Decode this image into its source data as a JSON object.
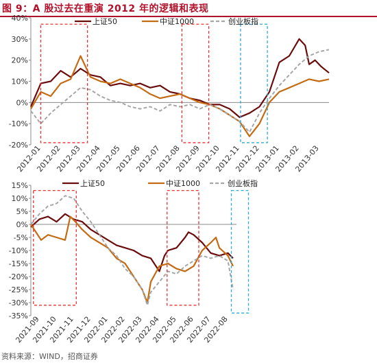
{
  "title": "图 9：A 股过去在重演 2012 年的逻辑和表现",
  "source": "资料来源：WIND，招商证券",
  "colors": {
    "sz50": "#6b0c0c",
    "zz1000": "#c46a12",
    "cyb": "#a6a6a6",
    "red_box": "#e83030",
    "blue_box": "#2aa8d8"
  },
  "chart_data": [
    {
      "type": "line",
      "title": "",
      "ylim": [
        -20,
        40
      ],
      "yticks": [
        "40%",
        "30%",
        "20%",
        "10%",
        "0%",
        "-10%",
        "-20%"
      ],
      "xticks": [
        "2012-01",
        "2012-02",
        "2012-03",
        "2012-04",
        "2012-05",
        "2012-06",
        "2012-07",
        "2012-08",
        "2012-09",
        "2012-10",
        "2012-11",
        "2012-12",
        "2013-01",
        "2013-02",
        "2013-03"
      ],
      "legend_position": "top",
      "series": [
        {
          "name": "上证50",
          "color": "#6b0c0c",
          "dashed": false,
          "points": [
            [
              0,
              -2
            ],
            [
              0.5,
              9
            ],
            [
              1,
              10
            ],
            [
              1.5,
              15
            ],
            [
              2,
              12
            ],
            [
              2.5,
              16
            ],
            [
              3,
              13
            ],
            [
              3.5,
              12
            ],
            [
              4,
              8
            ],
            [
              4.5,
              9
            ],
            [
              5,
              8
            ],
            [
              5.5,
              9
            ],
            [
              6,
              7
            ],
            [
              6.5,
              8
            ],
            [
              7,
              5
            ],
            [
              7.5,
              4
            ],
            [
              8,
              2
            ],
            [
              8.5,
              1
            ],
            [
              9,
              -1
            ],
            [
              9.5,
              -1
            ],
            [
              10,
              -3
            ],
            [
              10.5,
              -7
            ],
            [
              11,
              -5
            ],
            [
              11.5,
              -2
            ],
            [
              12,
              5
            ],
            [
              12.5,
              19
            ],
            [
              13,
              22
            ],
            [
              13.5,
              30
            ],
            [
              13.8,
              27
            ],
            [
              14,
              18
            ],
            [
              14.3,
              20
            ],
            [
              14.6,
              17
            ],
            [
              15,
              14
            ]
          ]
        },
        {
          "name": "中证1000",
          "color": "#c46a12",
          "dashed": false,
          "points": [
            [
              0,
              -3
            ],
            [
              0.5,
              5
            ],
            [
              1,
              3
            ],
            [
              1.5,
              9
            ],
            [
              2,
              11
            ],
            [
              2.5,
              22
            ],
            [
              3,
              12
            ],
            [
              3.5,
              10
            ],
            [
              4,
              9
            ],
            [
              4.5,
              11
            ],
            [
              5,
              9
            ],
            [
              5.5,
              7
            ],
            [
              6,
              4
            ],
            [
              6.5,
              2
            ],
            [
              7,
              3
            ],
            [
              7.5,
              4
            ],
            [
              8,
              2
            ],
            [
              8.5,
              0
            ],
            [
              9,
              -1
            ],
            [
              9.5,
              -3
            ],
            [
              10,
              -6
            ],
            [
              10.5,
              -9
            ],
            [
              11,
              -16
            ],
            [
              11.5,
              -10
            ],
            [
              12,
              0
            ],
            [
              12.5,
              5
            ],
            [
              13,
              7
            ],
            [
              13.5,
              9
            ],
            [
              14,
              11
            ],
            [
              14.5,
              10
            ],
            [
              15,
              11
            ]
          ]
        },
        {
          "name": "创业板指",
          "color": "#a6a6a6",
          "dashed": true,
          "points": [
            [
              0,
              -4
            ],
            [
              0.5,
              -10
            ],
            [
              1,
              -5
            ],
            [
              1.5,
              -1
            ],
            [
              2,
              3
            ],
            [
              2.5,
              7
            ],
            [
              3,
              6
            ],
            [
              3.5,
              3
            ],
            [
              4,
              1
            ],
            [
              4.5,
              0
            ],
            [
              5,
              -2
            ],
            [
              5.5,
              -3
            ],
            [
              6,
              -2
            ],
            [
              6.5,
              -4
            ],
            [
              7,
              -1
            ],
            [
              7.5,
              -2
            ],
            [
              8,
              -1
            ],
            [
              8.5,
              -3
            ],
            [
              9,
              -1
            ],
            [
              9.5,
              -3
            ],
            [
              10,
              -6
            ],
            [
              10.5,
              -9
            ],
            [
              11,
              -14
            ],
            [
              11.5,
              -5
            ],
            [
              12,
              2
            ],
            [
              12.5,
              8
            ],
            [
              13,
              13
            ],
            [
              13.5,
              18
            ],
            [
              14,
              22
            ],
            [
              14.5,
              24
            ],
            [
              15,
              25
            ]
          ]
        }
      ],
      "highlight_boxes": [
        {
          "color": "red",
          "x0": 0.5,
          "x1": 2.85,
          "y0": -19,
          "y1": 37
        },
        {
          "color": "red",
          "x0": 7.6,
          "x1": 8.95,
          "y0": -19,
          "y1": 37
        },
        {
          "color": "blue",
          "x0": 10.55,
          "x1": 11.9,
          "y0": -19,
          "y1": 37
        }
      ]
    },
    {
      "type": "line",
      "title": "",
      "ylim": [
        -35,
        15
      ],
      "yticks": [
        "15%",
        "10%",
        "5%",
        "0%",
        "-5%",
        "-10%",
        "-15%",
        "-20%",
        "-25%",
        "-30%",
        "-35%"
      ],
      "xticks": [
        "2021-09",
        "2021-10",
        "2021-11",
        "2021-12",
        "2022-01",
        "2022-02",
        "2022-03",
        "2022-04",
        "2022-05",
        "2022-06",
        "2022-07",
        "2022-08"
      ],
      "legend_position": "top",
      "series": [
        {
          "name": "上证50",
          "color": "#6b0c0c",
          "dashed": false,
          "points": [
            [
              0,
              -1
            ],
            [
              0.5,
              2
            ],
            [
              1,
              3
            ],
            [
              1.5,
              1
            ],
            [
              2,
              4
            ],
            [
              2.5,
              2
            ],
            [
              3,
              1
            ],
            [
              3.5,
              -2
            ],
            [
              4,
              -4
            ],
            [
              4.5,
              -6
            ],
            [
              5,
              -8
            ],
            [
              5.5,
              -9
            ],
            [
              6,
              -10
            ],
            [
              6.5,
              -12
            ],
            [
              7,
              -13
            ],
            [
              7.5,
              -18
            ],
            [
              7.8,
              -12
            ],
            [
              8,
              -10
            ],
            [
              8.5,
              -9
            ],
            [
              9,
              -5
            ],
            [
              9.2,
              -3
            ],
            [
              9.5,
              -4
            ],
            [
              10,
              -7
            ],
            [
              10.5,
              -11
            ],
            [
              11,
              -12
            ],
            [
              11.5,
              -11
            ],
            [
              11.8,
              -13
            ]
          ]
        },
        {
          "name": "中证1000",
          "color": "#c46a12",
          "dashed": false,
          "points": [
            [
              0,
              0
            ],
            [
              0.3,
              -3
            ],
            [
              0.6,
              -6
            ],
            [
              1,
              -4
            ],
            [
              1.5,
              -5
            ],
            [
              2,
              -6
            ],
            [
              2.3,
              3
            ],
            [
              2.6,
              1
            ],
            [
              3,
              -2
            ],
            [
              3.5,
              -5
            ],
            [
              4,
              -7
            ],
            [
              4.5,
              -9
            ],
            [
              5,
              -13
            ],
            [
              5.5,
              -15
            ],
            [
              6,
              -20
            ],
            [
              6.5,
              -25
            ],
            [
              6.8,
              -30
            ],
            [
              7,
              -22
            ],
            [
              7.5,
              -16
            ],
            [
              8,
              -15
            ],
            [
              8.5,
              -17
            ],
            [
              9,
              -18
            ],
            [
              9.5,
              -16
            ],
            [
              10,
              -10
            ],
            [
              10.5,
              -7
            ],
            [
              10.8,
              -5
            ],
            [
              11,
              -9
            ],
            [
              11.5,
              -12
            ],
            [
              11.8,
              -16
            ]
          ]
        },
        {
          "name": "创业板指",
          "color": "#a6a6a6",
          "dashed": true,
          "points": [
            [
              0,
              0
            ],
            [
              0.5,
              4
            ],
            [
              1,
              7
            ],
            [
              1.5,
              8
            ],
            [
              2,
              11
            ],
            [
              2.5,
              10
            ],
            [
              3,
              5
            ],
            [
              3.5,
              1
            ],
            [
              4,
              -4
            ],
            [
              4.5,
              -9
            ],
            [
              5,
              -12
            ],
            [
              5.5,
              -17
            ],
            [
              6,
              -20
            ],
            [
              6.5,
              -25
            ],
            [
              6.8,
              -31
            ],
            [
              7,
              -26
            ],
            [
              7.5,
              -22
            ],
            [
              8,
              -18
            ],
            [
              8.5,
              -19
            ],
            [
              9,
              -16
            ],
            [
              9.5,
              -14
            ],
            [
              10,
              -12
            ],
            [
              10.5,
              -13
            ],
            [
              11,
              -12
            ],
            [
              11.5,
              -14
            ],
            [
              11.8,
              -25
            ]
          ]
        }
      ],
      "highlight_boxes": [
        {
          "color": "red",
          "x0": 0.15,
          "x1": 2.65,
          "y0": -31,
          "y1": 13
        },
        {
          "color": "red",
          "x0": 7.95,
          "x1": 9.8,
          "y0": -31,
          "y1": 13
        },
        {
          "color": "blue",
          "x0": 11.7,
          "x1": 12.7,
          "y0": -34,
          "y1": 13
        }
      ]
    }
  ]
}
